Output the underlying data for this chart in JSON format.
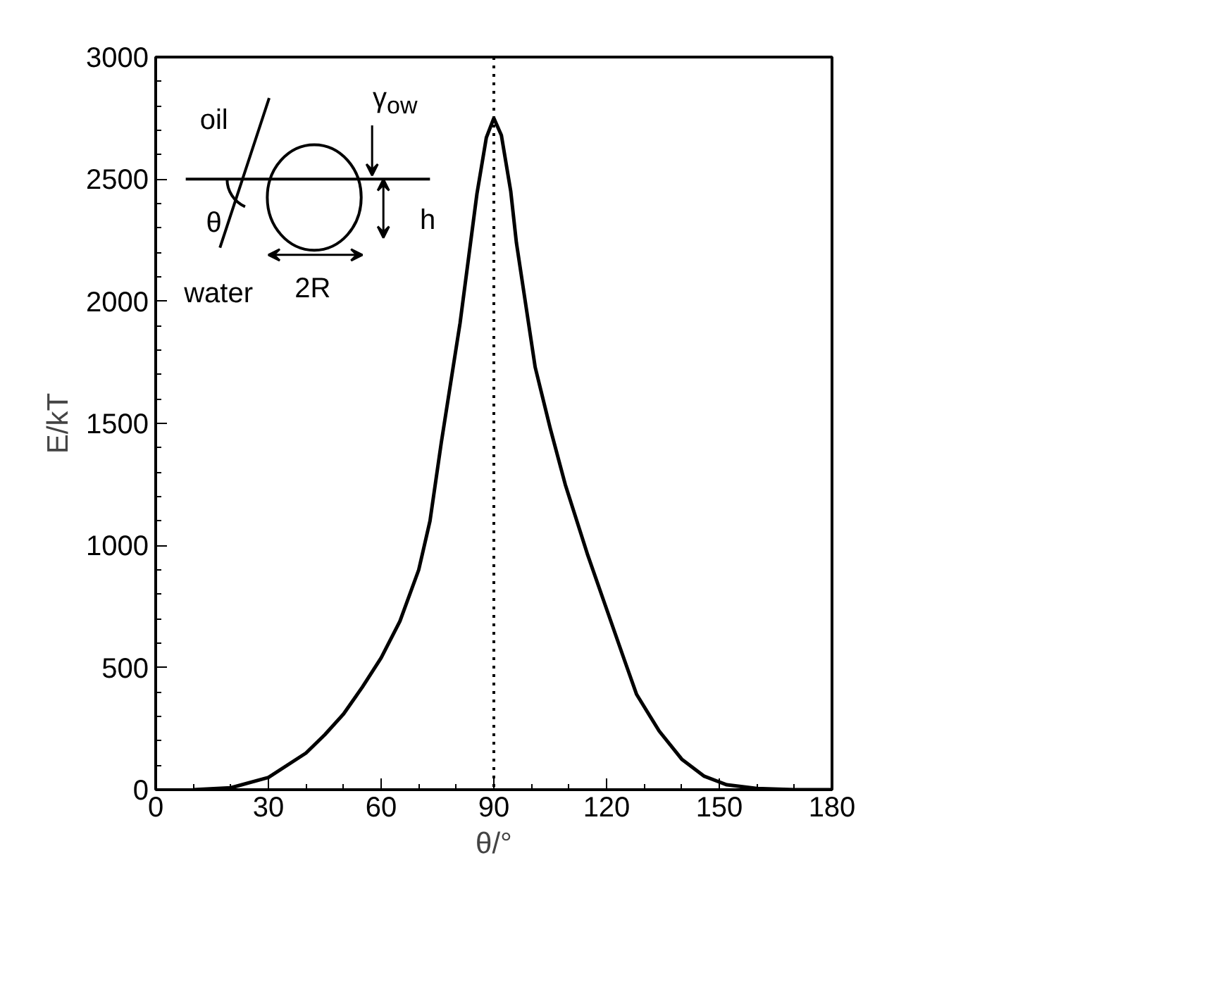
{
  "chart_data": {
    "type": "line",
    "xlabel": "θ/°",
    "ylabel": "E/kT",
    "x": [
      10,
      20,
      30,
      40,
      45,
      50,
      55,
      60,
      65,
      70,
      73,
      76,
      81,
      85.5,
      88,
      90,
      92,
      94.5,
      96,
      101,
      105,
      109,
      115,
      120,
      125,
      128,
      134,
      140,
      146,
      152,
      160,
      170,
      180
    ],
    "series": [
      {
        "color": "#000000",
        "values": [
          0,
          8,
          50,
          150,
          225,
          310,
          420,
          540,
          690,
          900,
          1100,
          1420,
          1910,
          2440,
          2670,
          2750,
          2680,
          2450,
          2240,
          1730,
          1480,
          1250,
          960,
          740,
          520,
          390,
          240,
          125,
          55,
          20,
          5,
          0,
          0
        ]
      }
    ],
    "xlim": [
      0,
      180
    ],
    "xticks": [
      0,
      30,
      60,
      90,
      120,
      150,
      180
    ],
    "ylim": [
      0,
      3000
    ],
    "yticks": [
      0,
      500,
      1000,
      1500,
      2000,
      2500,
      3000
    ],
    "grid": false,
    "marker": "none",
    "line_style": "solid",
    "ref_lines": [
      {
        "axis": "x",
        "value": 90,
        "line_style": "dotted",
        "color": "#000000"
      }
    ],
    "annotations": [
      "oil",
      "water",
      "θ",
      "γ$_{ow}$",
      "h",
      "2R"
    ]
  }
}
